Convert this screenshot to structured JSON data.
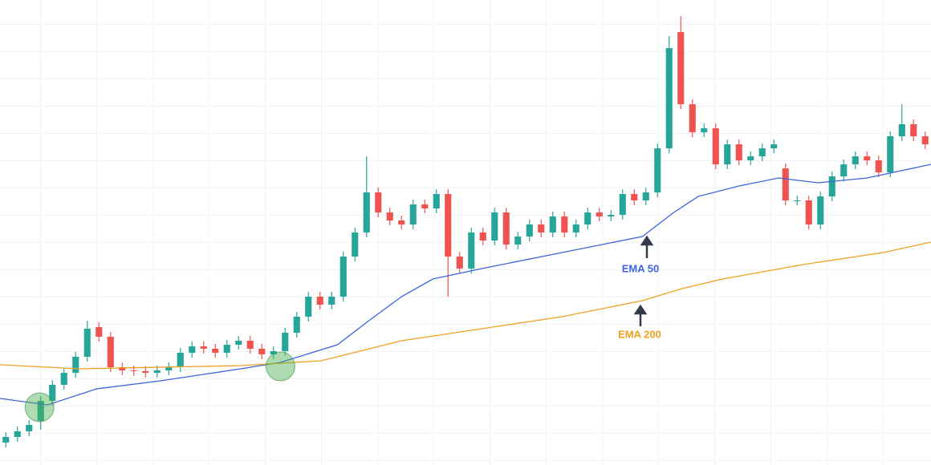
{
  "chart_data": {
    "type": "candlestick",
    "xlim": [
      -0.5,
      79.5
    ],
    "ylim": [
      0,
      580
    ],
    "up_color": "#26a69a",
    "down_color": "#ef5350",
    "open": [
      28,
      35,
      42,
      55,
      80,
      100,
      115,
      135,
      172,
      160,
      122,
      118,
      117,
      115,
      118,
      122,
      140,
      148,
      145,
      140,
      150,
      155,
      145,
      138,
      142,
      165,
      185,
      210,
      200,
      210,
      260,
      290,
      340,
      315,
      305,
      300,
      325,
      320,
      338,
      260,
      245,
      290,
      280,
      315,
      275,
      285,
      300,
      290,
      310,
      290,
      300,
      315,
      310,
      312,
      338,
      330,
      340,
      395,
      540,
      450,
      415,
      420,
      375,
      400,
      380,
      385,
      395,
      370,
      330,
      330,
      300,
      335,
      360,
      375,
      385,
      380,
      365,
      410,
      425,
      410
    ],
    "high": [
      41,
      48,
      56,
      86,
      106,
      121,
      141,
      180,
      178,
      166,
      128,
      124,
      123,
      124,
      128,
      146,
      154,
      154,
      151,
      156,
      161,
      161,
      151,
      148,
      171,
      191,
      216,
      216,
      216,
      266,
      296,
      385,
      346,
      321,
      311,
      331,
      331,
      344,
      344,
      266,
      296,
      296,
      321,
      321,
      291,
      306,
      306,
      316,
      316,
      306,
      321,
      321,
      318,
      344,
      344,
      346,
      401,
      535,
      560,
      456,
      426,
      426,
      406,
      406,
      391,
      401,
      406,
      376,
      336,
      336,
      341,
      366,
      381,
      391,
      391,
      386,
      416,
      450,
      431,
      416
    ],
    "low": [
      22,
      29,
      36,
      44,
      74,
      94,
      109,
      129,
      154,
      116,
      112,
      111,
      109,
      109,
      112,
      116,
      134,
      139,
      134,
      134,
      144,
      139,
      132,
      132,
      136,
      159,
      179,
      194,
      194,
      204,
      254,
      284,
      309,
      299,
      294,
      294,
      314,
      314,
      210,
      239,
      239,
      274,
      274,
      269,
      269,
      279,
      284,
      284,
      284,
      284,
      294,
      304,
      304,
      306,
      324,
      324,
      334,
      389,
      444,
      409,
      409,
      369,
      369,
      374,
      374,
      379,
      389,
      324,
      324,
      294,
      294,
      329,
      354,
      369,
      374,
      359,
      359,
      404,
      404,
      394
    ],
    "close": [
      35,
      42,
      50,
      80,
      100,
      115,
      135,
      170,
      160,
      122,
      118,
      117,
      115,
      118,
      122,
      140,
      148,
      145,
      140,
      150,
      155,
      145,
      138,
      142,
      165,
      185,
      210,
      200,
      210,
      260,
      290,
      340,
      315,
      305,
      300,
      325,
      320,
      338,
      260,
      245,
      290,
      280,
      315,
      275,
      285,
      300,
      290,
      310,
      290,
      300,
      315,
      310,
      312,
      338,
      330,
      340,
      395,
      520,
      450,
      415,
      420,
      375,
      400,
      380,
      385,
      395,
      400,
      330,
      330,
      300,
      335,
      360,
      375,
      385,
      380,
      365,
      410,
      425,
      410,
      400
    ],
    "series": [
      {
        "name": "EMA 50",
        "color": "#3d63dd",
        "x": [
          -0.5,
          3.6,
          7.8,
          13.3,
          20.2,
          23.6,
          28.5,
          31.2,
          34,
          36.7,
          40.9,
          47.8,
          54.7,
          57.4,
          59.5,
          63,
          66.4,
          69.8,
          74,
          79.5
        ],
        "values": [
          83,
          75,
          95,
          105,
          120,
          128,
          150,
          180,
          210,
          232,
          245,
          265,
          285,
          315,
          335,
          348,
          358,
          352,
          358,
          375
        ]
      },
      {
        "name": "EMA 200",
        "color": "#f0a020",
        "x": [
          -0.5,
          6.4,
          13.3,
          20.2,
          27.1,
          34,
          40.9,
          47.8,
          54.7,
          58.1,
          61.6,
          68.5,
          75.4,
          79.5
        ],
        "values": [
          125,
          120,
          122,
          124,
          130,
          155,
          170,
          185,
          205,
          220,
          232,
          250,
          265,
          278
        ]
      }
    ],
    "highlights": {
      "x": [
        2.9,
        23.6
      ],
      "values": [
        72,
        123
      ]
    }
  }
}
